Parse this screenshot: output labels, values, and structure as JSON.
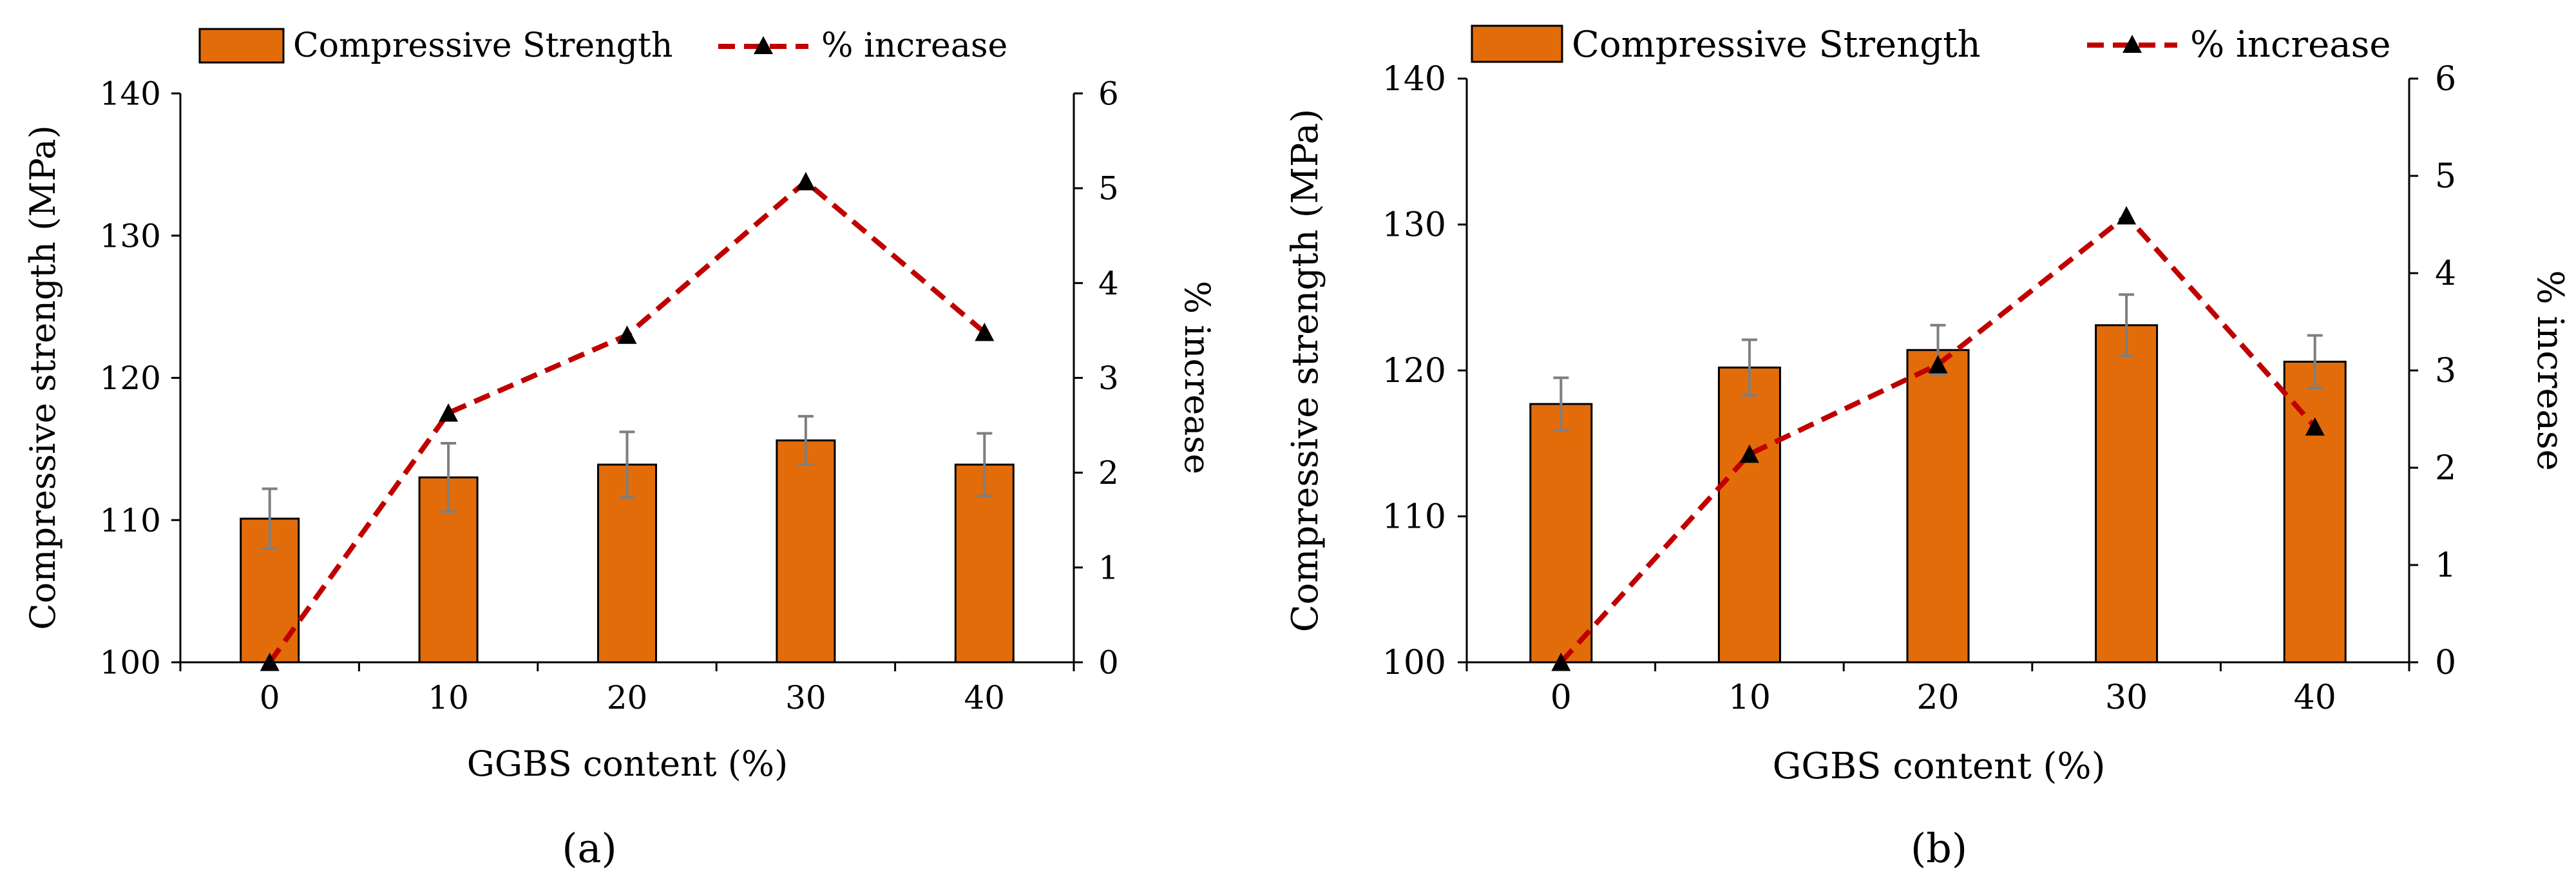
{
  "legend": {
    "bar_label": "Compressive Strength",
    "line_label": "% increase"
  },
  "colors": {
    "bar": "#E36C0A",
    "bar_edge": "#000000",
    "line": "#C00000",
    "marker": "#000000",
    "error_bar": "#7F7F7F",
    "axis": "#000000"
  },
  "chart_data": [
    {
      "type": "bar",
      "panel_label": "(a)",
      "title": "",
      "xlabel": "GGBS content (%)",
      "ylabel": "Compressive strength (MPa)",
      "y2label": "% increase",
      "categories": [
        "0",
        "10",
        "20",
        "30",
        "40"
      ],
      "ylim": [
        100,
        140
      ],
      "yticks": [
        100,
        110,
        120,
        130,
        140
      ],
      "y2lim": [
        0,
        6
      ],
      "y2ticks": [
        0,
        1,
        2,
        3,
        4,
        5,
        6
      ],
      "grid": false,
      "series": [
        {
          "name": "Compressive Strength",
          "axis": "left",
          "type": "bar",
          "values": [
            110.1,
            113.0,
            113.9,
            115.6,
            113.9
          ],
          "errors": [
            2.1,
            2.4,
            2.3,
            1.7,
            2.2
          ]
        },
        {
          "name": "% increase",
          "axis": "right",
          "type": "line",
          "values": [
            0,
            2.63,
            3.45,
            5.07,
            3.48
          ]
        }
      ]
    },
    {
      "type": "bar",
      "panel_label": "(b)",
      "title": "",
      "xlabel": "GGBS content (%)",
      "ylabel": "Compressive strength (MPa)",
      "y2label": "% increase",
      "categories": [
        "0",
        "10",
        "20",
        "30",
        "40"
      ],
      "ylim": [
        100,
        140
      ],
      "yticks": [
        100,
        110,
        120,
        130,
        140
      ],
      "y2lim": [
        0,
        6
      ],
      "y2ticks": [
        0,
        1,
        2,
        3,
        4,
        5,
        6
      ],
      "grid": false,
      "series": [
        {
          "name": "Compressive Strength",
          "axis": "left",
          "type": "bar",
          "values": [
            117.7,
            120.2,
            121.4,
            123.1,
            120.6
          ],
          "errors": [
            1.8,
            1.9,
            1.7,
            2.1,
            1.8
          ]
        },
        {
          "name": "% increase",
          "axis": "right",
          "type": "line",
          "values": [
            0,
            2.14,
            3.06,
            4.59,
            2.42
          ]
        }
      ]
    }
  ]
}
